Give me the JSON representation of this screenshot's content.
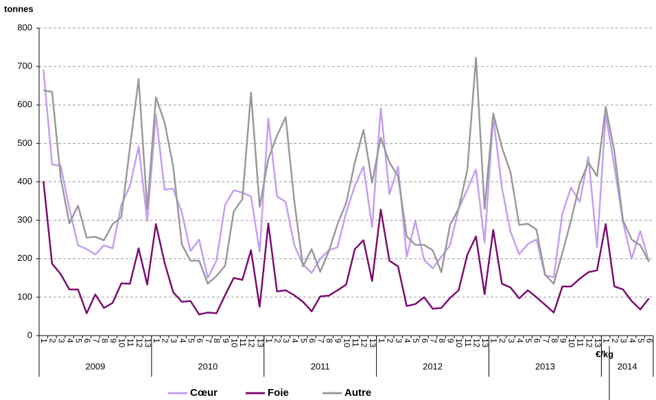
{
  "chart_data": {
    "type": "line",
    "y_label": "tonnes",
    "annotation": "€/kg",
    "groups": [
      {
        "label": "2009",
        "categories": [
          "1",
          "2",
          "3",
          "4",
          "5",
          "6",
          "7",
          "8",
          "9",
          "10",
          "11",
          "12",
          "13"
        ]
      },
      {
        "label": "2010",
        "categories": [
          "1",
          "2",
          "3",
          "4",
          "5",
          "6",
          "7",
          "8",
          "9",
          "10",
          "11",
          "12",
          "13"
        ]
      },
      {
        "label": "2011",
        "categories": [
          "1",
          "2",
          "3",
          "4",
          "5",
          "6",
          "7",
          "8",
          "9",
          "10",
          "11",
          "12",
          "13"
        ]
      },
      {
        "label": "2012",
        "categories": [
          "1",
          "2",
          "3",
          "4",
          "5",
          "6",
          "7",
          "8",
          "9",
          "10",
          "11",
          "12",
          "13"
        ]
      },
      {
        "label": "2013",
        "categories": [
          "1",
          "2",
          "3",
          "4",
          "5",
          "6",
          "7",
          "8",
          "9",
          "10",
          "11",
          "12",
          "13"
        ]
      },
      {
        "label": "2014",
        "categories": [
          "1",
          "2",
          "3",
          "4",
          "5",
          "6"
        ]
      }
    ],
    "series": [
      {
        "name": "Cœur",
        "color": "#c39ef2",
        "values": [
          692,
          445,
          442,
          330,
          235,
          225,
          211,
          235,
          227,
          340,
          390,
          492,
          298,
          575,
          380,
          382,
          320,
          220,
          250,
          150,
          195,
          340,
          378,
          372,
          362,
          218,
          565,
          362,
          348,
          235,
          185,
          163,
          200,
          222,
          230,
          320,
          390,
          440,
          282,
          592,
          368,
          440,
          205,
          298,
          197,
          175,
          205,
          235,
          330,
          380,
          432,
          242,
          568,
          385,
          270,
          212,
          238,
          250,
          157,
          152,
          318,
          385,
          348,
          465,
          230,
          575,
          440,
          295,
          200,
          272,
          193
        ]
      },
      {
        "name": "Foie",
        "color": "#7a0c6e",
        "values": [
          402,
          187,
          160,
          120,
          120,
          58,
          107,
          72,
          85,
          136,
          135,
          227,
          133,
          290,
          190,
          113,
          88,
          90,
          55,
          60,
          58,
          105,
          150,
          145,
          222,
          75,
          292,
          115,
          118,
          105,
          88,
          63,
          102,
          104,
          118,
          133,
          225,
          248,
          142,
          328,
          195,
          180,
          77,
          82,
          100,
          70,
          72,
          98,
          118,
          210,
          258,
          108,
          275,
          135,
          125,
          97,
          118,
          100,
          80,
          60,
          128,
          128,
          148,
          165,
          170,
          290,
          128,
          120,
          90,
          68,
          97
        ]
      },
      {
        "name": "Autre",
        "color": "#999999",
        "values": [
          638,
          634,
          410,
          292,
          338,
          255,
          257,
          248,
          290,
          308,
          490,
          668,
          330,
          620,
          555,
          440,
          237,
          195,
          195,
          135,
          155,
          182,
          323,
          355,
          632,
          335,
          460,
          520,
          568,
          350,
          180,
          225,
          166,
          220,
          290,
          345,
          450,
          535,
          398,
          515,
          450,
          415,
          258,
          236,
          236,
          222,
          165,
          288,
          330,
          430,
          723,
          330,
          578,
          490,
          425,
          288,
          291,
          276,
          158,
          135,
          215,
          300,
          395,
          450,
          415,
          595,
          480,
          300,
          250,
          235,
          192
        ]
      }
    ],
    "ylim": [
      0,
      800
    ],
    "yticks": [
      0,
      100,
      200,
      300,
      400,
      500,
      600,
      700,
      800
    ],
    "grid": true,
    "legend": "bottom"
  }
}
